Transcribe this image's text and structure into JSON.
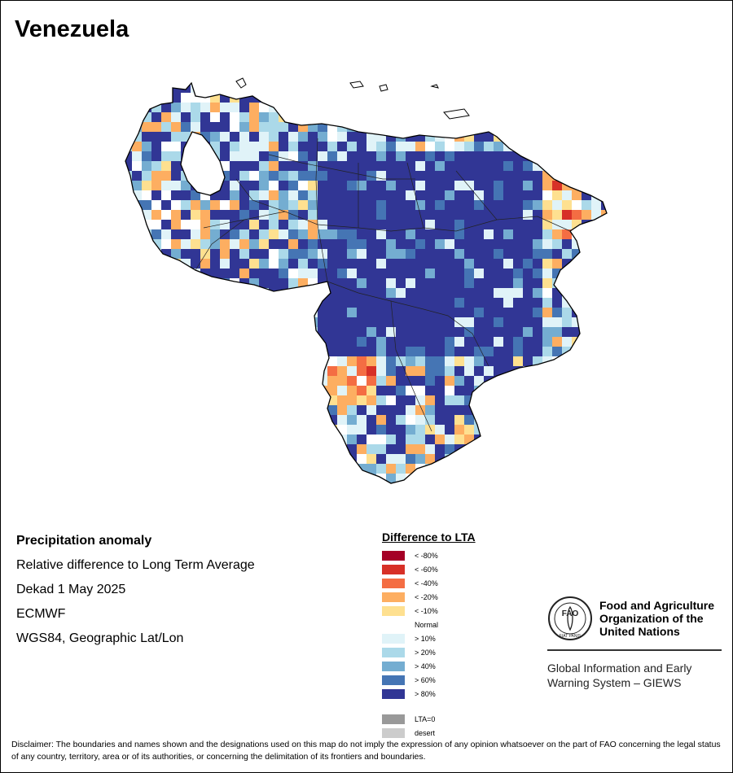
{
  "title": "Venezuela",
  "info": {
    "heading": "Precipitation anomaly",
    "line1": "Relative difference to Long Term Average",
    "line2": "Dekad 1 May 2025",
    "line3": "ECMWF",
    "line4": "WGS84, Geographic Lat/Lon"
  },
  "legend": {
    "title": "Difference to LTA",
    "items": [
      {
        "label": "< -80%",
        "color": "#a50026"
      },
      {
        "label": "< -60%",
        "color": "#d73027"
      },
      {
        "label": "< -40%",
        "color": "#f46d43"
      },
      {
        "label": "< -20%",
        "color": "#fdae61"
      },
      {
        "label": "< -10%",
        "color": "#fee090"
      },
      {
        "label": "Normal",
        "color": "#ffffff"
      },
      {
        "label": "> 10%",
        "color": "#e0f3f8"
      },
      {
        "label": "> 20%",
        "color": "#abd9e9"
      },
      {
        "label": "> 40%",
        "color": "#74add1"
      },
      {
        "label": "> 60%",
        "color": "#4575b4"
      },
      {
        "label": "> 80%",
        "color": "#313695"
      }
    ],
    "extra": [
      {
        "label": "LTA=0",
        "color": "#999999"
      },
      {
        "label": "desert",
        "color": "#cccccc"
      }
    ]
  },
  "fao": {
    "name_line1": "Food and Agriculture",
    "name_line2": "Organization of the",
    "name_line3": "United Nations",
    "sub_line1": "Global Information and Early",
    "sub_line2": "Warning System – GIEWS",
    "logo_text": "FAO",
    "logo_ring_text": "FIAT PANIS"
  },
  "disclaimer": "Disclaimer: The boundaries and names shown and the designations used on this map do not imply the expression of any opinion whatsoever on the part of FAO concerning the legal status of any country, territory, area or of its authorities, or concerning the delimitation of its frontiers and boundaries."
}
